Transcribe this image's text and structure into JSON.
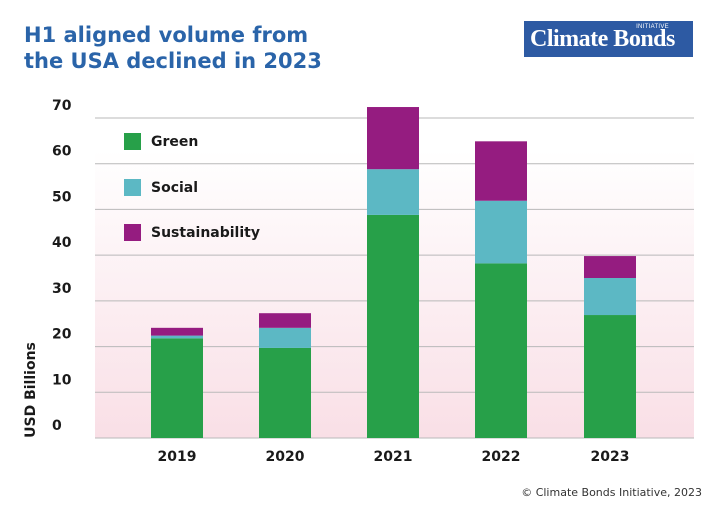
{
  "header": {
    "title_line1": "H1 aligned volume from",
    "title_line2": "the USA declined in 2023"
  },
  "logo": {
    "text": "Climate Bonds",
    "sup": "INITIATIVE"
  },
  "footer": {
    "copyright": "© Climate Bonds Initiative, 2023"
  },
  "colors": {
    "title": "#2a64a9",
    "logo_bg": "#2d5aa3",
    "green": "#27a049",
    "social": "#5cb8c4",
    "sustainability": "#951c80",
    "grid": "#b9b9b9",
    "plot_bg_top": "#ffffff",
    "plot_bg_bottom": "#f9dfe6"
  },
  "chart_data": {
    "type": "bar",
    "stacked": true,
    "title": "H1 aligned volume from the USA declined in 2023",
    "xlabel": "",
    "ylabel": "USD Billions",
    "ylim": [
      0,
      70
    ],
    "yticks": [
      0,
      10,
      20,
      30,
      40,
      50,
      60,
      70
    ],
    "grid": true,
    "legend_position": "top-left",
    "categories": [
      "2019",
      "2020",
      "2021",
      "2022",
      "2023"
    ],
    "series": [
      {
        "name": "Green",
        "color": "#27a049",
        "values": [
          21.8,
          19.7,
          48.8,
          38.2,
          26.9
        ]
      },
      {
        "name": "Social",
        "color": "#5cb8c4",
        "values": [
          0.6,
          4.4,
          10.0,
          13.7,
          8.1
        ]
      },
      {
        "name": "Sustainability",
        "color": "#951c80",
        "values": [
          1.7,
          3.2,
          13.6,
          13.0,
          4.8
        ]
      }
    ]
  }
}
